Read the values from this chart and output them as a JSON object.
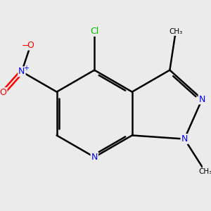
{
  "bg_color": "#ebebeb",
  "atom_colors": {
    "C": "#000000",
    "N": "#0000ff",
    "O": "#ff0000",
    "Cl": "#00bb00"
  },
  "bond_color": "#000000",
  "bond_lw": 1.8,
  "scale": 1.0
}
